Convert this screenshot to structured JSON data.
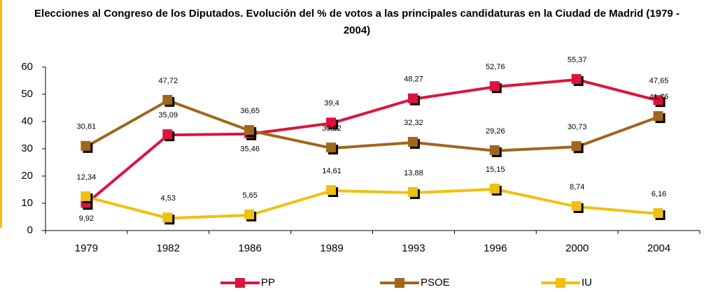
{
  "chart_data": {
    "type": "line",
    "title": "Elecciones al Congreso de los Diputados. Evolución del % de votos a las principales candidaturas en la Ciudad de Madrid (1979 - 2004)",
    "categories": [
      "1979",
      "1982",
      "1986",
      "1989",
      "1993",
      "1996",
      "2000",
      "2004"
    ],
    "series": [
      {
        "name": "PP",
        "color": "#dc143c",
        "values": [
          9.92,
          35.09,
          35.46,
          39.4,
          48.27,
          52.76,
          55.37,
          47.65
        ],
        "value_labels": [
          "9,92",
          "35,09",
          "35,46",
          "39,4",
          "48,27",
          "52,76",
          "55,37",
          "47,65"
        ]
      },
      {
        "name": "PSOE",
        "color": "#a0661c",
        "values": [
          30.81,
          47.72,
          36.65,
          30.22,
          32.32,
          29.26,
          30.73,
          41.76
        ],
        "value_labels": [
          "30,81",
          "47,72",
          "36,65",
          "30,22",
          "32,32",
          "29,26",
          "30,73",
          "41,76"
        ]
      },
      {
        "name": "IU",
        "color": "#f0c010",
        "values": [
          12.34,
          4.53,
          5.65,
          14.61,
          13.88,
          15.15,
          8.74,
          6.16
        ],
        "value_labels": [
          "12,34",
          "4,53",
          "5,65",
          "14,61",
          "13,88",
          "15,15",
          "8,74",
          "6,16"
        ]
      }
    ],
    "ylim": [
      0,
      60
    ],
    "yticks": [
      0,
      10,
      20,
      30,
      40,
      50,
      60
    ],
    "grid": false,
    "legend": "bottom"
  }
}
